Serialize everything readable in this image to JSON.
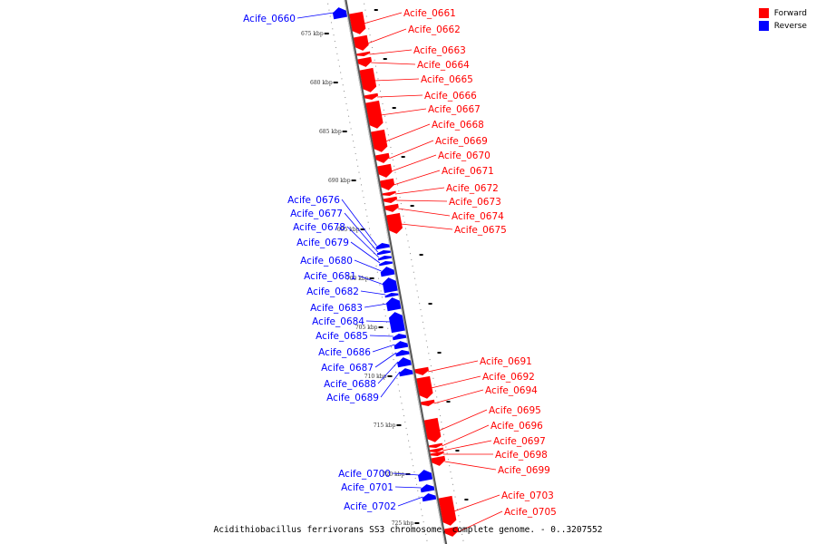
{
  "legend": {
    "forward_label": "Forward",
    "reverse_label": "Reverse",
    "forward_color": "#ff0000",
    "reverse_color": "#0000ff"
  },
  "caption": "Acidithiobacillus ferrivorans SS3 chromosome, complete genome. - 0..3207552",
  "scale_labels": [
    "675 kbp",
    "680 kbp",
    "685 kbp",
    "690 kbp",
    "695 kbp",
    "700 kbp",
    "705 kbp",
    "710 kbp",
    "715 kbp",
    "720 kbp",
    "725 kbp"
  ],
  "genes": [
    {
      "name": "Acife_0660",
      "strand": "reverse"
    },
    {
      "name": "Acife_0661",
      "strand": "forward"
    },
    {
      "name": "Acife_0662",
      "strand": "forward"
    },
    {
      "name": "Acife_0663",
      "strand": "forward"
    },
    {
      "name": "Acife_0664",
      "strand": "forward"
    },
    {
      "name": "Acife_0665",
      "strand": "forward"
    },
    {
      "name": "Acife_0666",
      "strand": "forward"
    },
    {
      "name": "Acife_0667",
      "strand": "forward"
    },
    {
      "name": "Acife_0668",
      "strand": "forward"
    },
    {
      "name": "Acife_0669",
      "strand": "forward"
    },
    {
      "name": "Acife_0670",
      "strand": "forward"
    },
    {
      "name": "Acife_0671",
      "strand": "forward"
    },
    {
      "name": "Acife_0672",
      "strand": "forward"
    },
    {
      "name": "Acife_0673",
      "strand": "forward"
    },
    {
      "name": "Acife_0674",
      "strand": "forward"
    },
    {
      "name": "Acife_0675",
      "strand": "forward"
    },
    {
      "name": "Acife_0676",
      "strand": "reverse"
    },
    {
      "name": "Acife_0677",
      "strand": "reverse"
    },
    {
      "name": "Acife_0678",
      "strand": "reverse"
    },
    {
      "name": "Acife_0679",
      "strand": "reverse"
    },
    {
      "name": "Acife_0680",
      "strand": "reverse"
    },
    {
      "name": "Acife_0681",
      "strand": "reverse"
    },
    {
      "name": "Acife_0682",
      "strand": "reverse"
    },
    {
      "name": "Acife_0683",
      "strand": "reverse"
    },
    {
      "name": "Acife_0684",
      "strand": "reverse"
    },
    {
      "name": "Acife_0685",
      "strand": "reverse"
    },
    {
      "name": "Acife_0686",
      "strand": "reverse"
    },
    {
      "name": "Acife_0687",
      "strand": "reverse"
    },
    {
      "name": "Acife_0688",
      "strand": "reverse"
    },
    {
      "name": "Acife_0689",
      "strand": "reverse"
    },
    {
      "name": "Acife_0691",
      "strand": "forward"
    },
    {
      "name": "Acife_0692",
      "strand": "forward"
    },
    {
      "name": "Acife_0694",
      "strand": "forward"
    },
    {
      "name": "Acife_0695",
      "strand": "forward"
    },
    {
      "name": "Acife_0696",
      "strand": "forward"
    },
    {
      "name": "Acife_0697",
      "strand": "forward"
    },
    {
      "name": "Acife_0698",
      "strand": "forward"
    },
    {
      "name": "Acife_0699",
      "strand": "forward"
    },
    {
      "name": "Acife_0700",
      "strand": "reverse"
    },
    {
      "name": "Acife_0701",
      "strand": "reverse"
    },
    {
      "name": "Acife_0702",
      "strand": "reverse"
    },
    {
      "name": "Acife_0703",
      "strand": "forward"
    },
    {
      "name": "Acife_0705",
      "strand": "forward"
    }
  ]
}
